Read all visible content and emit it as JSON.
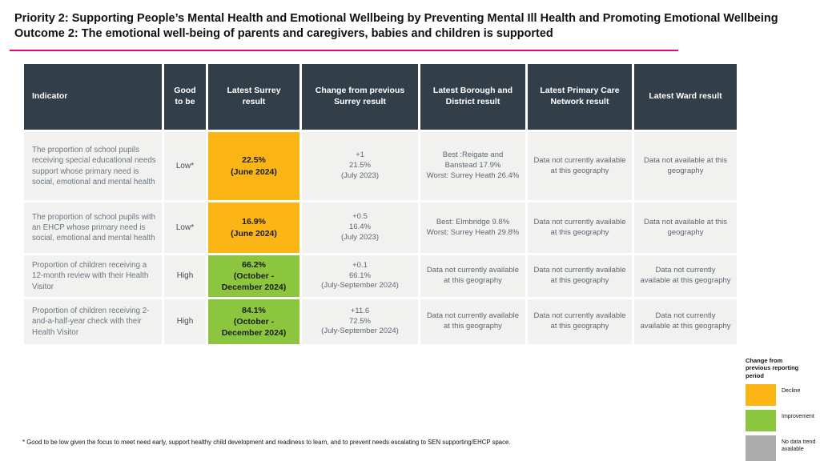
{
  "colors": {
    "accent_pink": "#e5067e",
    "header_bg": "#333f48",
    "decline": "#fbb615",
    "improvement": "#8cc63f",
    "no_data": "#ababab"
  },
  "header": {
    "title_line1": "Priority 2: Supporting People’s Mental Health and Emotional Wellbeing by Preventing Mental Ill Health and Promoting Emotional Wellbeing",
    "title_line2": "Outcome 2: The emotional well-being of parents and caregivers, babies and children is supported"
  },
  "table": {
    "columns": [
      "Indicator",
      "Good to be",
      "Latest Surrey result",
      "Change from previous Surrey result",
      "Latest Borough and District result",
      "Latest Primary Care Network result",
      "Latest Ward result"
    ],
    "rows": [
      {
        "indicator": "The proportion of school pupils receiving special educational needs support whose primary need is social, emotional and mental health",
        "good_to_be": "Low*",
        "surrey_result": "22.5%\n(June 2024)",
        "status": "decline",
        "change": "+1\n21.5%\n(July 2023)",
        "borough": "Best :Reigate and Banstead 17.9%\nWorst: Surrey Heath 26.4%",
        "pcn": "Data not currently available at this geography",
        "ward": "Data not available at this geography"
      },
      {
        "indicator": "The proportion of school pupils with an EHCP whose primary need is social, emotional and mental health",
        "good_to_be": "Low*",
        "surrey_result": "16.9%\n(June 2024)",
        "status": "decline",
        "change": "+0.5\n16.4%\n(July 2023)",
        "borough": "Best: Elmbridge 9.8%\nWorst: Surrey Heath 29.8%",
        "pcn": "Data not currently available at this geography",
        "ward": "Data not available at this geography"
      },
      {
        "indicator": "Proportion of children receiving a 12-month review with their Health Visitor",
        "good_to_be": "High",
        "surrey_result": "66.2%\n(October - December 2024)",
        "status": "improvement",
        "change": "+0.1\n66.1%\n(July-September 2024)",
        "borough": "Data not currently available at this geography",
        "pcn": "Data not currently available at this geography",
        "ward": "Data not currently available at this geography"
      },
      {
        "indicator": "Proportion of children receiving 2-and-a-half-year check with their Health Visitor",
        "good_to_be": "High",
        "surrey_result": "84.1%\n(October - December 2024)",
        "status": "improvement",
        "change": "+11.6\n72.5%\n(July-September 2024)",
        "borough": "Data not currently available at this geography",
        "pcn": "Data not currently available at this geography",
        "ward": "Data not currently available at this geography"
      }
    ]
  },
  "legend": {
    "title": "Change from previous reporting period",
    "items": [
      {
        "label": "Decline",
        "status": "decline"
      },
      {
        "label": "Improvement",
        "status": "improvement"
      },
      {
        "label": "No data trend available",
        "status": "no_data"
      }
    ]
  },
  "footnote": "* Good to be low given the focus to meet need early, support healthy child development and readiness to learn, and to prevent needs escalating to SEN supporting/EHCP space."
}
